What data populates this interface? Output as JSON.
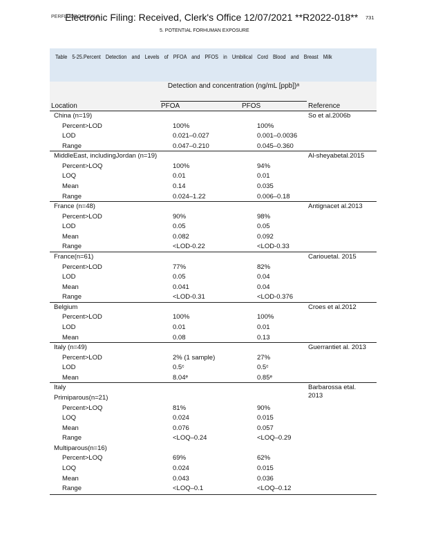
{
  "header": {
    "running_head": "PERFLUOROALKYLS",
    "stamp": "Electronic Filing: Received, Clerk's Office 12/07/2021 **R2022-018**",
    "page_number": "731",
    "section": "5.  POTENTIAL  FORHUMAN EXPOSURE"
  },
  "table": {
    "caption": "Table 5-25.Percent Detection and Levels of PFOA and PFOS in Umbilical Cord Blood and Breast Milk",
    "group_header": "Detection and concentration (ng/mL [ppb])ᵃ",
    "columns": [
      "Location",
      "PFOA",
      "PFOS",
      "Reference"
    ],
    "groups": [
      {
        "location": "China (n=19)",
        "reference": "So et al.2006b",
        "rows": [
          [
            "Percent>LOD",
            "100%",
            "100%"
          ],
          [
            "LOD",
            "0.021–0.027",
            "0.001–0.0036"
          ],
          [
            "Range",
            "0.047–0.210",
            "0.045–0.360"
          ]
        ]
      },
      {
        "location": "MiddleEast, includingJordan (n=19)",
        "reference": "Al-sheyabetal.2015",
        "rows": [
          [
            "Percent>LOQ",
            "100%",
            "94%"
          ],
          [
            "LOQ",
            "0.01",
            "0.01"
          ],
          [
            "Mean",
            "0.14",
            "0.035"
          ],
          [
            "Range",
            "0.024–1.22",
            "0.006–0.18"
          ]
        ]
      },
      {
        "location": "France (n=48)",
        "reference": "Antignacet al.2013",
        "rows": [
          [
            "Percent>LOD",
            "90%",
            "98%"
          ],
          [
            "LOD",
            "0.05",
            "0.05"
          ],
          [
            "Mean",
            "0.082",
            "0.092"
          ],
          [
            "Range",
            "<LOD-0.22",
            "<LOD-0.33"
          ]
        ]
      },
      {
        "location": "France(n=61)",
        "reference": "Cariouetal. 2015",
        "rows": [
          [
            "Percent>LOD",
            "77%",
            "82%"
          ],
          [
            "LOD",
            "0.05",
            "0.04"
          ],
          [
            "Mean",
            "0.041",
            "0.04"
          ],
          [
            "Range",
            "<LOD-0.31",
            "<LOD-0.376"
          ]
        ]
      },
      {
        "location": "Belgium",
        "reference": "Croes et al.2012",
        "rows": [
          [
            "Percent>LOD",
            "100%",
            "100%"
          ],
          [
            "LOD",
            "0.01",
            "0.01"
          ],
          [
            "Mean",
            "0.08",
            "0.13"
          ]
        ]
      },
      {
        "location": "Italy (n=49)",
        "reference": "Guerrantiet al. 2013",
        "rows": [
          [
            "Percent>LOD",
            "2% (1 sample)",
            "27%"
          ],
          [
            "LOD",
            "0.5ᶜ",
            "0.5ᶜ"
          ],
          [
            "Mean",
            "8.04ᵉ",
            "0.85ᵉ"
          ]
        ]
      },
      {
        "location": "Italy",
        "reference": "Barbarossa etal. 2013",
        "rows": [],
        "subgroups": [
          {
            "label": "Primiparous(n=21)",
            "rows": [
              [
                "Percent>LOQ",
                "81%",
                "90%"
              ],
              [
                "LOQ",
                "0.024",
                "0.015"
              ],
              [
                "Mean",
                "0.076",
                "0.057"
              ],
              [
                "Range",
                "<LOQ–0.24",
                "<LOQ–0.29"
              ]
            ]
          },
          {
            "label": "Multiparous(n=16)",
            "rows": [
              [
                "Percent>LOQ",
                "69%",
                "62%"
              ],
              [
                "LOQ",
                "0.024",
                "0.015"
              ],
              [
                "Mean",
                "0.043",
                "0.036"
              ],
              [
                "Range",
                "<LOQ–0.1",
                "<LOQ–0.12"
              ]
            ]
          }
        ]
      }
    ]
  }
}
